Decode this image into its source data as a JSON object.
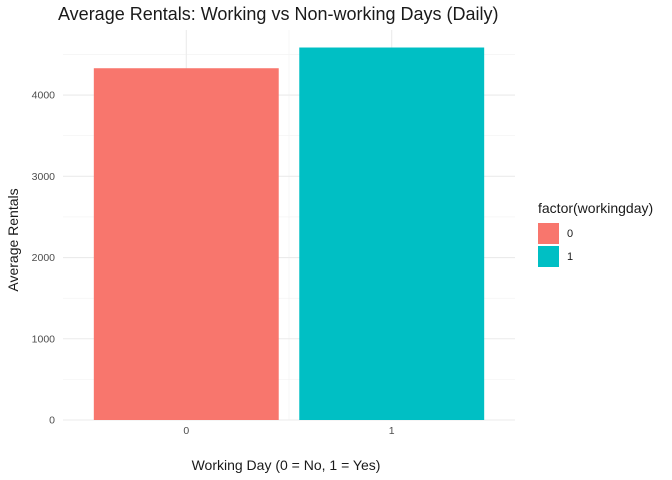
{
  "chart_data": {
    "type": "bar",
    "title": "Average Rentals: Working vs Non-working Days (Daily)",
    "xlabel": "Working Day (0 = No, 1 = Yes)",
    "ylabel": "Average Rentals",
    "categories": [
      "0",
      "1"
    ],
    "values": [
      4330,
      4585
    ],
    "colors": [
      "#F8766D",
      "#00BFC4"
    ],
    "ylim": [
      0,
      4600
    ],
    "yticks": [
      0,
      1000,
      2000,
      3000,
      4000
    ],
    "grid": true,
    "legend": {
      "title": "factor(workingday)",
      "placement": "right",
      "entries": [
        "0",
        "1"
      ]
    }
  }
}
